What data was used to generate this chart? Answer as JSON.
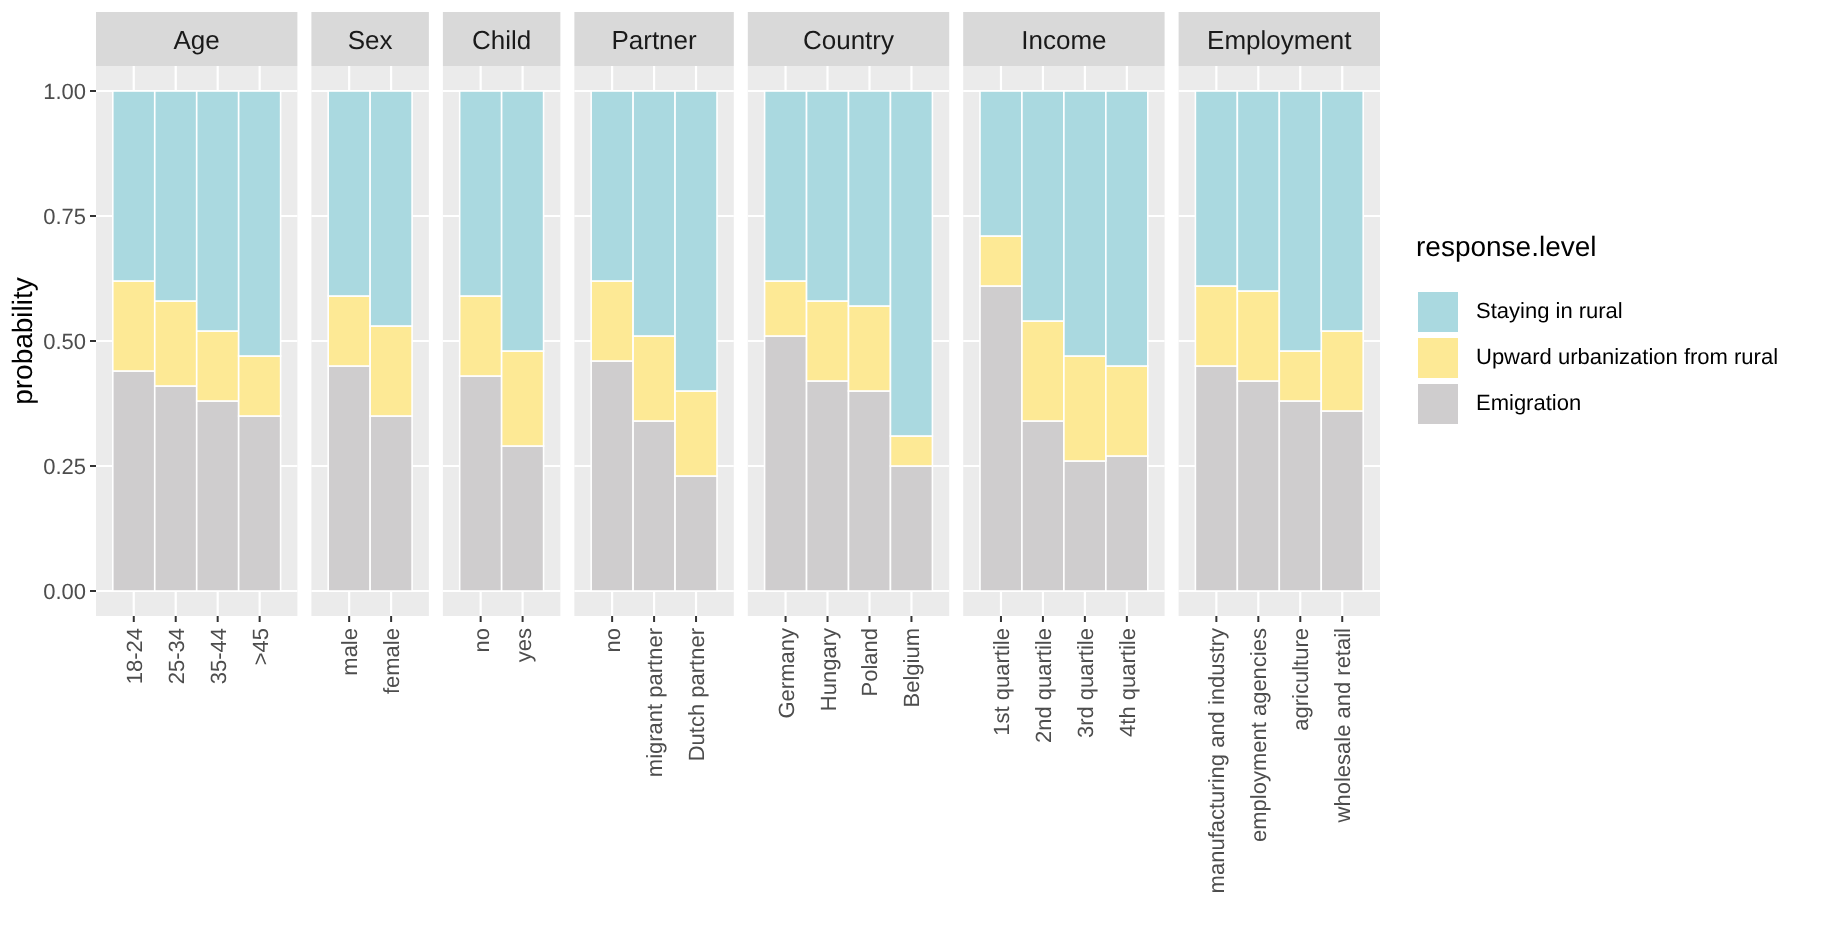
{
  "chart_data": [
    {
      "type": "bar",
      "title": "Age",
      "ylabel": "probability",
      "categories": [
        "18-24",
        "25-34",
        "35-44",
        ">45"
      ],
      "stacked": true,
      "ylim": [
        -0.05,
        1.05
      ],
      "yticks": [
        {
          "value": 0,
          "label": "0.00"
        },
        {
          "value": 0.25,
          "label": "0.25"
        },
        {
          "value": 0.5,
          "label": "0.50"
        },
        {
          "value": 0.75,
          "label": "0.75"
        },
        {
          "value": 1,
          "label": "1.00"
        }
      ],
      "grid": true,
      "legend": false,
      "series": [
        {
          "color": "#cfcdce",
          "values": [
            0.44,
            0.41,
            0.38,
            0.35
          ]
        },
        {
          "color": "#fde995",
          "values": [
            0.18,
            0.17,
            0.14,
            0.12
          ]
        },
        {
          "color": "#aad9e0",
          "values": [
            0.38,
            0.42,
            0.48,
            0.53
          ]
        }
      ]
    },
    {
      "type": "bar",
      "title": "Sex",
      "categories": [
        "male",
        "female"
      ],
      "stacked": true,
      "ylim": [
        -0.05,
        1.05
      ],
      "yticks": [
        0,
        0.25,
        0.5,
        0.75,
        1
      ],
      "grid": true,
      "legend": false,
      "tick_labels": "x",
      "series": [
        {
          "color": "#cfcdce",
          "values": [
            0.45,
            0.35
          ]
        },
        {
          "color": "#fde995",
          "values": [
            0.14,
            0.18
          ]
        },
        {
          "color": "#aad9e0",
          "values": [
            0.41,
            0.47
          ]
        }
      ]
    },
    {
      "type": "bar",
      "title": "Child",
      "categories": [
        "no",
        "yes"
      ],
      "stacked": true,
      "ylim": [
        -0.05,
        1.05
      ],
      "yticks": [
        0,
        0.25,
        0.5,
        0.75,
        1
      ],
      "grid": true,
      "legend": false,
      "tick_labels": "x",
      "series": [
        {
          "color": "#cfcdce",
          "values": [
            0.43,
            0.29
          ]
        },
        {
          "color": "#fde995",
          "values": [
            0.16,
            0.19
          ]
        },
        {
          "color": "#aad9e0",
          "values": [
            0.41,
            0.52
          ]
        }
      ]
    },
    {
      "type": "bar",
      "title": "Partner",
      "categories": [
        "no",
        "migrant partner",
        "Dutch partner"
      ],
      "stacked": true,
      "ylim": [
        -0.05,
        1.05
      ],
      "yticks": [
        0,
        0.25,
        0.5,
        0.75,
        1
      ],
      "grid": true,
      "legend": false,
      "tick_labels": "x",
      "series": [
        {
          "color": "#cfcdce",
          "values": [
            0.46,
            0.34,
            0.23
          ]
        },
        {
          "color": "#fde995",
          "values": [
            0.16,
            0.17,
            0.17
          ]
        },
        {
          "color": "#aad9e0",
          "values": [
            0.38,
            0.49,
            0.6
          ]
        }
      ]
    },
    {
      "type": "bar",
      "title": "Country",
      "categories": [
        "Germany",
        "Hungary",
        "Poland",
        "Belgium"
      ],
      "stacked": true,
      "ylim": [
        -0.05,
        1.05
      ],
      "yticks": [
        0,
        0.25,
        0.5,
        0.75,
        1
      ],
      "grid": true,
      "legend": false,
      "tick_labels": "x",
      "series": [
        {
          "color": "#cfcdce",
          "values": [
            0.51,
            0.42,
            0.4,
            0.25
          ]
        },
        {
          "color": "#fde995",
          "values": [
            0.11,
            0.16,
            0.17,
            0.06
          ]
        },
        {
          "color": "#aad9e0",
          "values": [
            0.38,
            0.42,
            0.43,
            0.69
          ]
        }
      ]
    },
    {
      "type": "bar",
      "title": "Income",
      "categories": [
        "1st quartile",
        "2nd quartile",
        "3rd quartile",
        "4th quartile"
      ],
      "stacked": true,
      "ylim": [
        -0.05,
        1.05
      ],
      "yticks": [
        0,
        0.25,
        0.5,
        0.75,
        1
      ],
      "grid": true,
      "legend": false,
      "tick_labels": "x",
      "series": [
        {
          "color": "#cfcdce",
          "values": [
            0.61,
            0.34,
            0.26,
            0.27
          ]
        },
        {
          "color": "#fde995",
          "values": [
            0.1,
            0.2,
            0.21,
            0.18
          ]
        },
        {
          "color": "#aad9e0",
          "values": [
            0.29,
            0.46,
            0.53,
            0.55
          ]
        }
      ]
    },
    {
      "type": "bar",
      "title": "Employment",
      "categories": [
        "manufacturing and industry",
        "employment agencies",
        "agriculture",
        "wholesale and retail"
      ],
      "stacked": true,
      "ylim": [
        -0.05,
        1.05
      ],
      "yticks": [
        0,
        0.25,
        0.5,
        0.75,
        1
      ],
      "grid": true,
      "legend": "right",
      "legend_title": "response.level",
      "tick_labels": "x",
      "series": [
        {
          "name": "Emigration",
          "color": "#cfcdce",
          "values": [
            0.45,
            0.42,
            0.38,
            0.36
          ]
        },
        {
          "name": "Upward urbanization from rural",
          "color": "#fde995",
          "values": [
            0.16,
            0.18,
            0.1,
            0.16
          ]
        },
        {
          "name": "Staying in rural",
          "color": "#aad9e0",
          "values": [
            0.39,
            0.4,
            0.52,
            0.48
          ]
        }
      ]
    }
  ]
}
